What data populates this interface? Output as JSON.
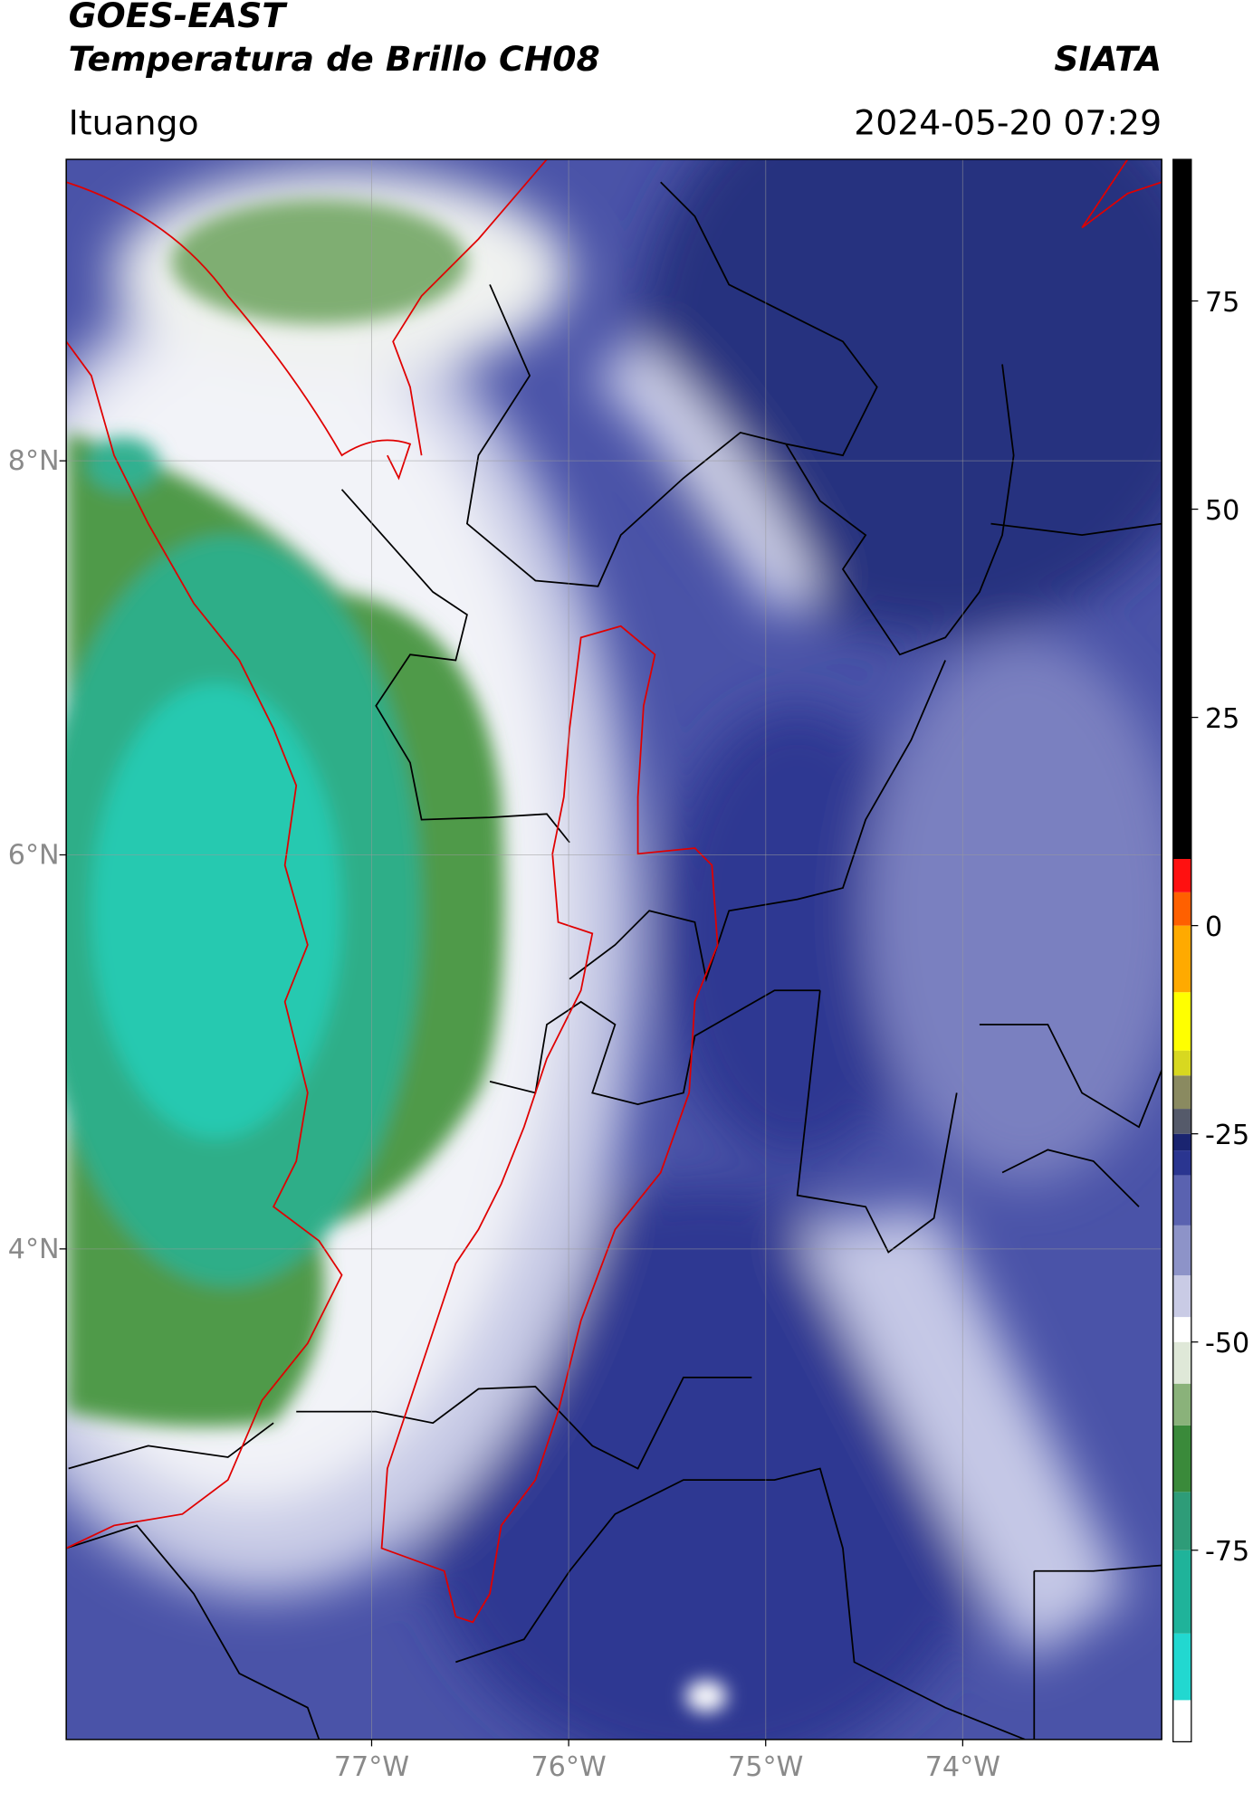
{
  "header": {
    "title": "GOES-EAST",
    "subtitle": "Temperatura de Brillo CH08",
    "brand": "SIATA",
    "region": "Ituango",
    "timestamp": "2024-05-20 07:29"
  },
  "map": {
    "lonlim": [
      -78.55,
      -72.99
    ],
    "latlim": [
      1.51,
      9.53
    ],
    "grid": true,
    "lon_ticks": [
      {
        "value": -77,
        "label": "77°W"
      },
      {
        "value": -76,
        "label": "76°W"
      },
      {
        "value": -75,
        "label": "75°W"
      },
      {
        "value": -74,
        "label": "74°W"
      }
    ],
    "lat_ticks": [
      {
        "value": 8,
        "label": "8°N"
      },
      {
        "value": 6,
        "label": "6°N"
      },
      {
        "value": 4,
        "label": "4°N"
      }
    ]
  },
  "colorbar": {
    "lim": [
      -98,
      92
    ],
    "ticks": [
      75,
      50,
      25,
      0,
      -25,
      -50,
      -75
    ],
    "stops": [
      {
        "value": -98,
        "color": "#ffffff"
      },
      {
        "value": -93,
        "color": "#22d8d0"
      },
      {
        "value": -85,
        "color": "#1fb39a"
      },
      {
        "value": -75,
        "color": "#2e9c78"
      },
      {
        "value": -68,
        "color": "#3a8a3a"
      },
      {
        "value": -60,
        "color": "#8ab27a"
      },
      {
        "value": -55,
        "color": "#dfe8d8"
      },
      {
        "value": -50,
        "color": "#ffffff"
      },
      {
        "value": -47,
        "color": "#c9cbe5"
      },
      {
        "value": -42,
        "color": "#8d93c8"
      },
      {
        "value": -36,
        "color": "#5a62b0"
      },
      {
        "value": -30,
        "color": "#2a3590"
      },
      {
        "value": -27,
        "color": "#1a2470"
      },
      {
        "value": -25,
        "color": "#555a6a"
      },
      {
        "value": -22,
        "color": "#8a8a60"
      },
      {
        "value": -18,
        "color": "#d8d820"
      },
      {
        "value": -15,
        "color": "#ffff00"
      },
      {
        "value": -8,
        "color": "#ffaa00"
      },
      {
        "value": 0,
        "color": "#ff6000"
      },
      {
        "value": 4,
        "color": "#ff1010"
      },
      {
        "value": 8,
        "color": "#000000"
      }
    ]
  }
}
